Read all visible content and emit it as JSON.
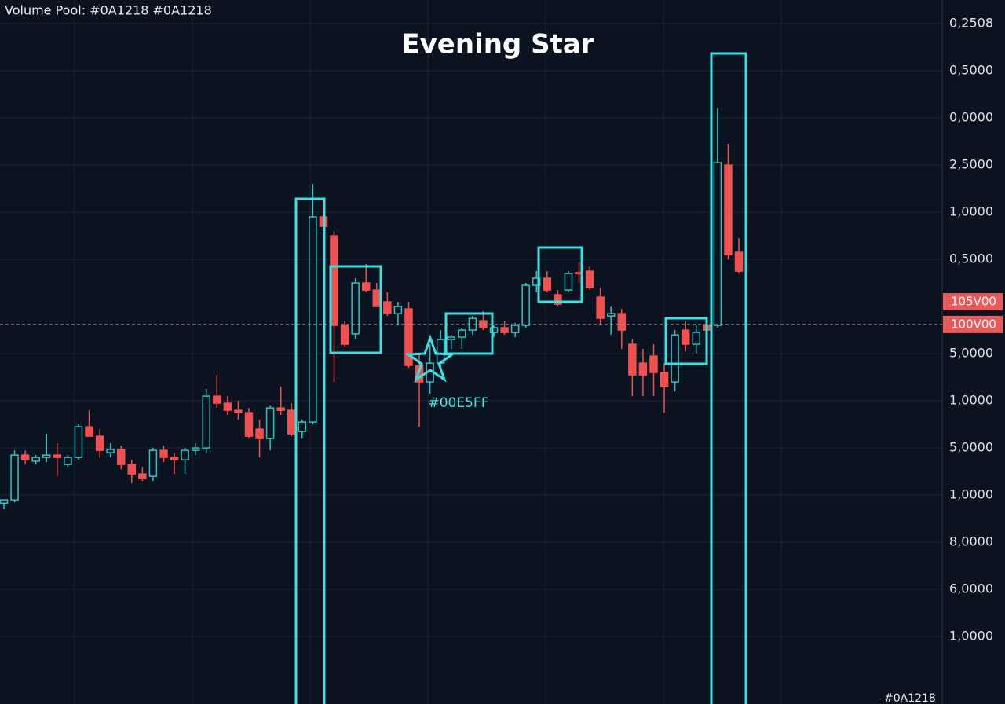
{
  "header": {
    "text": "Volume Pool: #0A1218 #0A1218"
  },
  "chart_data": {
    "type": "candlestick",
    "title": "Evening Star",
    "annotation": "#00E5FF",
    "footer_label": "#0A1218",
    "ylim": [
      -0.43,
      14.5
    ],
    "yticks": [
      {
        "value": 14,
        "label": "0,2508"
      },
      {
        "value": 13,
        "label": "0,5000"
      },
      {
        "value": 12,
        "label": "0,0000"
      },
      {
        "value": 11,
        "label": "2,5000"
      },
      {
        "value": 10,
        "label": "1,0000"
      },
      {
        "value": 9,
        "label": "0,5000"
      },
      {
        "value": 7,
        "label": "5,0000"
      },
      {
        "value": 6,
        "label": "1,0000"
      },
      {
        "value": 5,
        "label": "5,0000"
      },
      {
        "value": 4,
        "label": "1,0000"
      },
      {
        "value": 3,
        "label": "8,0000"
      },
      {
        "value": 2,
        "label": "6,0000"
      },
      {
        "value": 1,
        "label": "1,0000"
      }
    ],
    "price_tags": [
      {
        "value": 8.1,
        "label": "105V00"
      },
      {
        "value": 7.62,
        "label": "100V00"
      }
    ],
    "up_color": "#26c6c6",
    "down_color": "#f0504f",
    "grid": true,
    "open": [
      3.83,
      3.9,
      4.85,
      4.72,
      4.8,
      4.85,
      4.65,
      4.8,
      5.45,
      5.25,
      4.9,
      4.97,
      4.65,
      4.45,
      4.4,
      4.95,
      4.8,
      4.75,
      4.95,
      5.0,
      6.1,
      5.95,
      5.8,
      5.75,
      5.4,
      5.2,
      5.85,
      5.8,
      5.35,
      5.55,
      9.9,
      9.5,
      7.6,
      7.42,
      8.5,
      8.35,
      8.1,
      7.85,
      7.95,
      6.75,
      6.4,
      6.8,
      7.3,
      7.35,
      7.5,
      7.7,
      7.45,
      7.55,
      7.45,
      7.6,
      8.45,
      8.6,
      8.25,
      8.35,
      8.72,
      8.75,
      8.2,
      7.8,
      7.85,
      7.2,
      6.8,
      6.95,
      6.6,
      6.4,
      7.5,
      7.2,
      7.6,
      7.6,
      11.0,
      9.15
    ],
    "high": [
      3.9,
      4.95,
      4.95,
      4.85,
      5.3,
      5.1,
      4.85,
      5.5,
      5.8,
      5.4,
      5.1,
      5.05,
      4.75,
      4.6,
      5.0,
      5.05,
      4.9,
      5.0,
      5.1,
      6.25,
      6.55,
      6.1,
      6.0,
      5.85,
      5.6,
      5.9,
      6.3,
      5.95,
      5.6,
      10.6,
      10.3,
      9.6,
      7.7,
      8.6,
      8.9,
      8.5,
      8.3,
      8.1,
      8.1,
      7.0,
      7.2,
      7.5,
      7.4,
      7.55,
      7.8,
      7.9,
      7.6,
      7.7,
      7.65,
      8.5,
      8.75,
      8.75,
      8.35,
      8.75,
      8.95,
      8.85,
      8.4,
      8.0,
      7.95,
      7.3,
      7.1,
      7.2,
      6.8,
      7.5,
      7.7,
      7.6,
      7.7,
      12.2,
      11.45,
      9.45
    ],
    "low": [
      3.7,
      3.85,
      4.65,
      4.65,
      4.7,
      4.4,
      4.6,
      4.75,
      5.3,
      4.8,
      4.8,
      4.55,
      4.25,
      4.3,
      4.3,
      4.7,
      4.45,
      4.45,
      4.85,
      4.9,
      5.85,
      5.7,
      5.6,
      5.2,
      4.8,
      4.95,
      5.7,
      5.25,
      5.2,
      5.5,
      9.6,
      6.4,
      7.15,
      7.3,
      8.3,
      8.0,
      7.8,
      7.6,
      6.7,
      5.45,
      6.15,
      6.7,
      7.1,
      7.1,
      7.4,
      7.5,
      7.35,
      7.4,
      7.35,
      7.55,
      8.3,
      8.3,
      8.0,
      8.3,
      8.5,
      8.35,
      7.6,
      7.4,
      7.1,
      6.1,
      6.1,
      6.1,
      5.75,
      6.2,
      7.05,
      7.0,
      7.45,
      7.55,
      9.0,
      8.7
    ],
    "close": [
      3.9,
      4.85,
      4.75,
      4.8,
      4.85,
      4.8,
      4.8,
      5.45,
      5.25,
      4.95,
      4.97,
      4.65,
      4.45,
      4.35,
      4.95,
      4.8,
      4.75,
      4.95,
      5.0,
      6.1,
      5.95,
      5.8,
      5.75,
      5.25,
      5.2,
      5.85,
      5.8,
      5.3,
      5.55,
      9.9,
      9.7,
      7.6,
      7.2,
      8.5,
      8.35,
      8.0,
      7.85,
      8.0,
      6.75,
      6.4,
      6.8,
      7.3,
      7.35,
      7.5,
      7.75,
      7.55,
      7.55,
      7.45,
      7.6,
      8.45,
      8.6,
      8.35,
      8.05,
      8.7,
      8.7,
      8.4,
      7.75,
      7.85,
      7.5,
      6.55,
      6.55,
      6.6,
      6.3,
      7.4,
      7.2,
      7.45,
      7.5,
      11.05,
      9.1,
      8.75
    ]
  }
}
